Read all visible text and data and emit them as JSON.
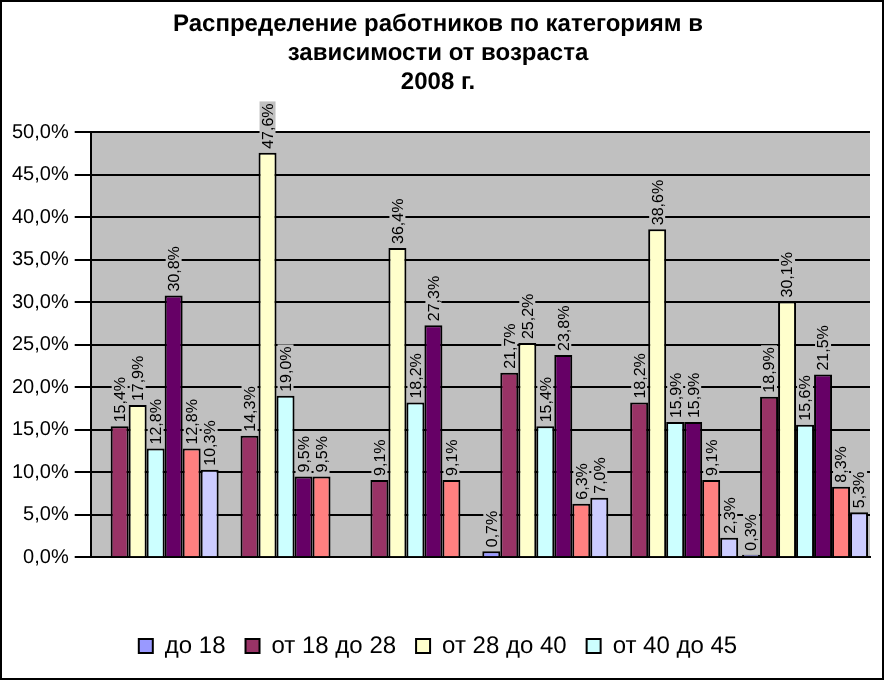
{
  "chart_data": {
    "type": "bar",
    "title": "Распределение работников по категориям в зависимости от возраста",
    "subtitle": "2008 г.",
    "categories": [
      null,
      null,
      null,
      null,
      null,
      null
    ],
    "ylim": [
      0,
      50
    ],
    "yticks": [
      {
        "value": 0,
        "label": "0,0%"
      },
      {
        "value": 5,
        "label": "5,0%"
      },
      {
        "value": 10,
        "label": "10,0%"
      },
      {
        "value": 15,
        "label": "15,0%"
      },
      {
        "value": 20,
        "label": "20,0%"
      },
      {
        "value": 25,
        "label": "25,0%"
      },
      {
        "value": 30,
        "label": "30,0%"
      },
      {
        "value": 35,
        "label": "35,0%"
      },
      {
        "value": 40,
        "label": "40,0%"
      },
      {
        "value": 45,
        "label": "45,0%"
      },
      {
        "value": 50,
        "label": "50,0%"
      }
    ],
    "grid": "y",
    "legend": "bottom",
    "series": [
      {
        "name": "до 18",
        "color": "#9999ff",
        "values": [
          null,
          null,
          null,
          0.7,
          null,
          0.3
        ],
        "value_labels": [
          null,
          null,
          null,
          "0,7%",
          null,
          "0,3%"
        ]
      },
      {
        "name": "от 18 до 28",
        "color": "#993366",
        "values": [
          15.4,
          14.3,
          9.1,
          21.7,
          18.2,
          18.9
        ],
        "value_labels": [
          "15,4%",
          "14,3%",
          "9,1%",
          "21,7%",
          "18,2%",
          "18,9%"
        ]
      },
      {
        "name": "от 28 до 40",
        "color": "#ffffcc",
        "values": [
          17.9,
          47.6,
          36.4,
          25.2,
          38.6,
          30.1
        ],
        "value_labels": [
          "17,9%",
          "47,6%",
          "36,4%",
          "25,2%",
          "38,6%",
          "30,1%"
        ]
      },
      {
        "name": "от 40 до 45",
        "color": "#ccffff",
        "values": [
          12.8,
          19.0,
          18.2,
          15.4,
          15.9,
          15.6
        ],
        "value_labels": [
          "12,8%",
          "19,0%",
          "18,2%",
          "15,4%",
          "15,9%",
          "15,6%"
        ]
      },
      {
        "color": "#660066",
        "values": [
          30.8,
          9.5,
          27.3,
          23.8,
          15.9,
          21.5
        ],
        "value_labels": [
          "30,8%",
          "9,5%",
          "27,3%",
          "23,8%",
          "15,9%",
          "21,5%"
        ]
      },
      {
        "color": "#ff8080",
        "values": [
          12.8,
          9.5,
          9.1,
          6.3,
          9.1,
          8.3
        ],
        "value_labels": [
          "12,8%",
          "9,5%",
          "9,1%",
          "6,3%",
          "9,1%",
          "8,3%"
        ]
      },
      {
        "color": "#ccccff",
        "values": [
          10.3,
          null,
          null,
          7.0,
          2.3,
          5.3
        ],
        "value_labels": [
          "10,3%",
          null,
          null,
          "7,0%",
          "2,3%",
          "5,3%"
        ]
      }
    ]
  }
}
